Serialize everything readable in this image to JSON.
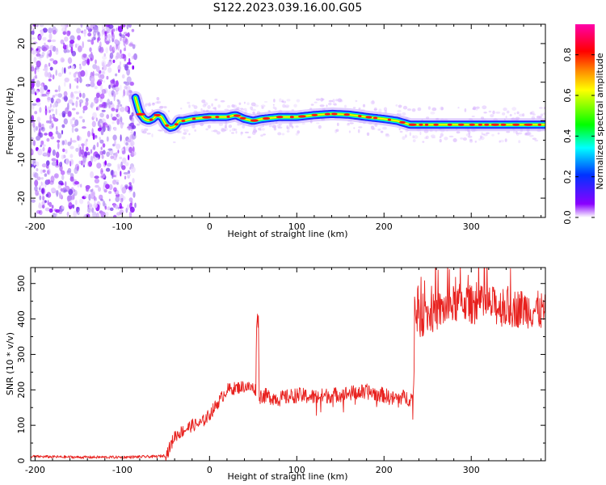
{
  "title": "S122.2023.039.16.00.G05",
  "chart_data": [
    {
      "type": "heatmap",
      "xlabel": "Height of straight line (km)",
      "ylabel": "Frequency (Hz)",
      "xlim": [
        -205,
        385
      ],
      "ylim": [
        -25,
        25
      ],
      "xticks": [
        -200,
        -100,
        0,
        100,
        200,
        300
      ],
      "yticks": [
        -20,
        -10,
        0,
        10,
        20
      ],
      "noise_region_x": [
        -205,
        -85
      ],
      "peak_frequency_track": {
        "x": [
          -85,
          -80,
          -75,
          -70,
          -65,
          -60,
          -55,
          -50,
          -45,
          -40,
          -35,
          -30,
          -20,
          0,
          20,
          30,
          40,
          50,
          60,
          80,
          100,
          120,
          140,
          160,
          180,
          200,
          215,
          230,
          260,
          300,
          340,
          385
        ],
        "y": [
          6,
          2,
          0.5,
          0,
          0.5,
          1.5,
          1,
          -1,
          -1.8,
          -1.5,
          0,
          0,
          0.5,
          1,
          1,
          1.5,
          0.5,
          0,
          0.5,
          1,
          1,
          1.5,
          1.8,
          1.6,
          1,
          0.5,
          0,
          -1,
          -1,
          -1,
          -1,
          -1
        ]
      },
      "colorbar": {
        "label": "Normalized spectral amplitude",
        "range": [
          0,
          0.95
        ],
        "ticks": [
          0.0,
          0.2,
          0.4,
          0.6,
          0.8
        ],
        "tick_labels": [
          "0.0",
          "0.2",
          "0.4",
          "0.6",
          "0.8"
        ],
        "colors": [
          "#ffffff",
          "#8a00ff",
          "#0033ff",
          "#00ffff",
          "#00ff00",
          "#ffff00",
          "#ff8800",
          "#ff0000",
          "#ff00aa"
        ]
      }
    },
    {
      "type": "line",
      "xlabel": "Height of straight line (km)",
      "ylabel": "SNR (10 * v/v)",
      "xlim": [
        -205,
        385
      ],
      "ylim": [
        0,
        545
      ],
      "xticks": [
        -200,
        -100,
        0,
        100,
        200,
        300
      ],
      "yticks": [
        0,
        100,
        200,
        300,
        400,
        500
      ],
      "color": "#e8211e",
      "series": [
        {
          "x": [
            -205,
            -150,
            -100,
            -60,
            -50,
            -45,
            -40,
            -30,
            -20,
            -10,
            0,
            10,
            20,
            30,
            40,
            50,
            53,
            54,
            55,
            56,
            57,
            60,
            70,
            80,
            100,
            120,
            140,
            160,
            180,
            200,
            210,
            220,
            230,
            234,
            235,
            236,
            240,
            250,
            260,
            270,
            280,
            290,
            300,
            320,
            340,
            360,
            375,
            385
          ],
          "y": [
            12,
            10,
            10,
            12,
            15,
            40,
            70,
            85,
            100,
            105,
            130,
            165,
            200,
            205,
            210,
            205,
            200,
            395,
            400,
            395,
            180,
            185,
            180,
            175,
            185,
            180,
            185,
            190,
            195,
            185,
            175,
            180,
            175,
            180,
            440,
            420,
            400,
            410,
            420,
            430,
            440,
            450,
            440,
            440,
            430,
            430,
            425,
            420
          ]
        }
      ]
    }
  ]
}
